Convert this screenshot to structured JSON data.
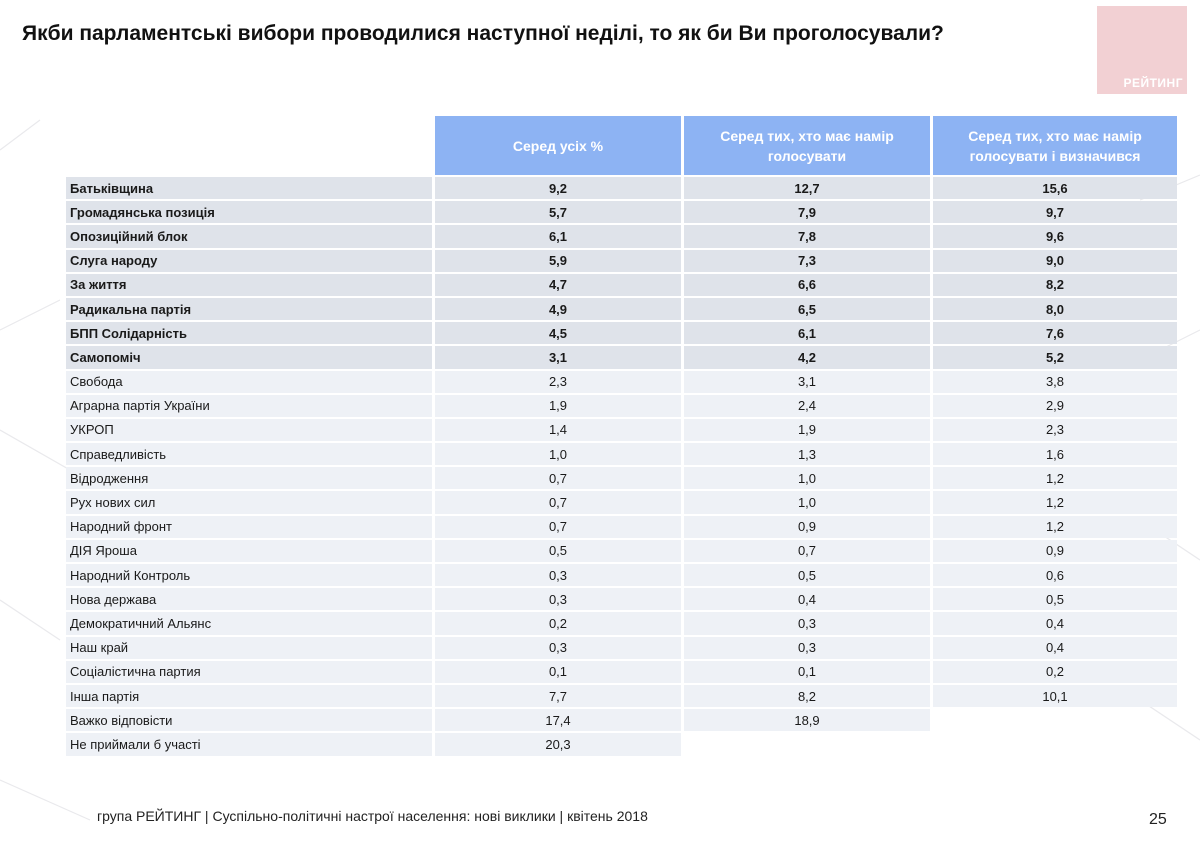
{
  "title": "Якби парламентські вибори проводилися наступної неділі, то як би Ви проголосували?",
  "logo_text": "РЕЙТИНГ",
  "table": {
    "headers": [
      "",
      "Серед усіх %",
      "Серед тих, хто має намір голосувати",
      "Серед тих, хто має намір голосувати і визначився"
    ],
    "bold_rows": [
      [
        "Батьківщина",
        "9,2",
        "12,7",
        "15,6"
      ],
      [
        "Громадянська позиція",
        "5,7",
        "7,9",
        "9,7"
      ],
      [
        "Опозиційний блок",
        "6,1",
        "7,8",
        "9,6"
      ],
      [
        "Слуга народу",
        "5,9",
        "7,3",
        "9,0"
      ],
      [
        "За життя",
        "4,7",
        "6,6",
        "8,2"
      ],
      [
        "Радикальна партія",
        "4,9",
        "6,5",
        "8,0"
      ],
      [
        "БПП Солідарність",
        "4,5",
        "6,1",
        "7,6"
      ],
      [
        "Самопоміч",
        "3,1",
        "4,2",
        "5,2"
      ]
    ],
    "rows": [
      [
        "Свобода",
        "2,3",
        "3,1",
        "3,8"
      ],
      [
        "Аграрна партія України",
        "1,9",
        "2,4",
        "2,9"
      ],
      [
        "УКРОП",
        "1,4",
        "1,9",
        "2,3"
      ],
      [
        "Справедливість",
        "1,0",
        "1,3",
        "1,6"
      ],
      [
        "Відродження",
        "0,7",
        "1,0",
        "1,2"
      ],
      [
        "Рух нових сил",
        "0,7",
        "1,0",
        "1,2"
      ],
      [
        "Народний фронт",
        "0,7",
        "0,9",
        "1,2"
      ],
      [
        "ДІЯ Яроша",
        "0,5",
        "0,7",
        "0,9"
      ],
      [
        "Народний Контроль",
        "0,3",
        "0,5",
        "0,6"
      ],
      [
        "Нова держава",
        "0,3",
        "0,4",
        "0,5"
      ],
      [
        "Демократичний Альянс",
        "0,2",
        "0,3",
        "0,4"
      ],
      [
        "Наш край",
        "0,3",
        "0,3",
        "0,4"
      ],
      [
        "Соціалістична партия",
        "0,1",
        "0,1",
        "0,2"
      ],
      [
        "Інша партія",
        "7,7",
        "8,2",
        "10,1"
      ],
      [
        "Важко відповісти",
        "17,4",
        "18,9",
        ""
      ],
      [
        "Не приймали б участі",
        "20,3",
        "",
        ""
      ]
    ]
  },
  "footer": "група РЕЙТИНГ  |  Суспільно-політичні настрої населення: нові виклики  |  квітень 2018",
  "page_number": "25"
}
